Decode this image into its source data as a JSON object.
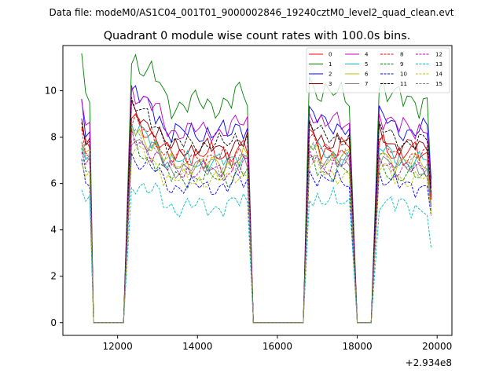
{
  "figure": {
    "suptitle": "Data file: modeM0/AS1C04_001T01_9000002846_19240cztM0_level2_quad_clean.evt",
    "title": "Quadrant 0 module wise count rates with 100.0s bins.",
    "x_offset_label": "+2.934e8"
  },
  "chart_data": {
    "type": "line",
    "title": "Quadrant 0 module wise count rates with 100.0s bins.",
    "xlabel": "",
    "ylabel": "",
    "x_offset": 293400000,
    "xlim": [
      10630,
      20370
    ],
    "ylim": [
      -0.55,
      11.95
    ],
    "xticks": [
      12000,
      14000,
      16000,
      18000,
      20000
    ],
    "xtick_labels": [
      "12000",
      "14000",
      "16000",
      "18000",
      "20000"
    ],
    "yticks": [
      0,
      2,
      4,
      6,
      8,
      10
    ],
    "ytick_labels": [
      "0",
      "2",
      "4",
      "6",
      "8",
      "10"
    ],
    "grid": false,
    "legend_position": "top-right",
    "legend_columns": 4,
    "segments": [
      {
        "start": 11100,
        "end": 11300
      },
      {
        "start": 12350,
        "end": 15300
      },
      {
        "start": 16800,
        "end": 17850
      },
      {
        "start": 18550,
        "end": 19900
      }
    ],
    "gaps": [
      {
        "drop": 11300,
        "zero_start": 11400,
        "zero_end": 12050,
        "rise_from": 12150,
        "rise_to": 12350
      },
      {
        "drop": 15300,
        "zero_start": 15400,
        "zero_end": 16650,
        "rise_from": 16650,
        "rise_to": 16800
      },
      {
        "drop": 17850,
        "zero_start": 18000,
        "zero_end": 18200,
        "rise_from": 18350,
        "rise_to": 18550
      }
    ],
    "series": [
      {
        "name": "0",
        "color": "#ff0000",
        "dash": "solid",
        "level": 7.5,
        "amp": 0.35,
        "phase": 0.3,
        "end": 5.5
      },
      {
        "name": "1",
        "color": "#008000",
        "dash": "solid",
        "level": 9.8,
        "amp": 0.45,
        "phase": 1.1,
        "end": 6.0
      },
      {
        "name": "2",
        "color": "#0000ff",
        "dash": "solid",
        "level": 8.5,
        "amp": 0.35,
        "phase": 2.0,
        "end": 6.2
      },
      {
        "name": "3",
        "color": "#800000",
        "dash": "solid",
        "level": 7.8,
        "amp": 0.3,
        "phase": 2.7,
        "end": 5.4
      },
      {
        "name": "4",
        "color": "#bf00bf",
        "dash": "solid",
        "level": 8.6,
        "amp": 0.35,
        "phase": 3.5,
        "end": 5.8
      },
      {
        "name": "5",
        "color": "#00bfbf",
        "dash": "solid",
        "level": 7.2,
        "amp": 0.3,
        "phase": 4.2,
        "end": 5.0
      },
      {
        "name": "6",
        "color": "#bfbf00",
        "dash": "solid",
        "level": 7.1,
        "amp": 0.3,
        "phase": 5.0,
        "end": 5.1
      },
      {
        "name": "7",
        "color": "#808080",
        "dash": "solid",
        "level": 6.9,
        "amp": 0.3,
        "phase": 5.7,
        "end": 5.0
      },
      {
        "name": "8",
        "color": "#ff0000",
        "dash": "dashed",
        "level": 7.4,
        "amp": 0.3,
        "phase": 0.8,
        "end": 5.3
      },
      {
        "name": "9",
        "color": "#008000",
        "dash": "dashed",
        "level": 6.5,
        "amp": 0.3,
        "phase": 1.6,
        "end": 4.8
      },
      {
        "name": "10",
        "color": "#0000ff",
        "dash": "dashed",
        "level": 6.1,
        "amp": 0.3,
        "phase": 2.4,
        "end": 4.6
      },
      {
        "name": "11",
        "color": "#000000",
        "dash": "dashed",
        "level": 8.0,
        "amp": 0.3,
        "phase": 3.1,
        "end": 5.6
      },
      {
        "name": "12",
        "color": "#bf00bf",
        "dash": "dashed",
        "level": 6.8,
        "amp": 0.3,
        "phase": 3.9,
        "end": 4.9
      },
      {
        "name": "13",
        "color": "#00bfbf",
        "dash": "dashed",
        "level": 5.2,
        "amp": 0.35,
        "phase": 4.6,
        "end": 3.2
      },
      {
        "name": "14",
        "color": "#bfbf00",
        "dash": "dashed",
        "level": 6.4,
        "amp": 0.3,
        "phase": 5.4,
        "end": 4.7
      },
      {
        "name": "15",
        "color": "#808080",
        "dash": "dashed",
        "level": 7.0,
        "amp": 0.3,
        "phase": 6.0,
        "end": 4.9
      }
    ]
  }
}
